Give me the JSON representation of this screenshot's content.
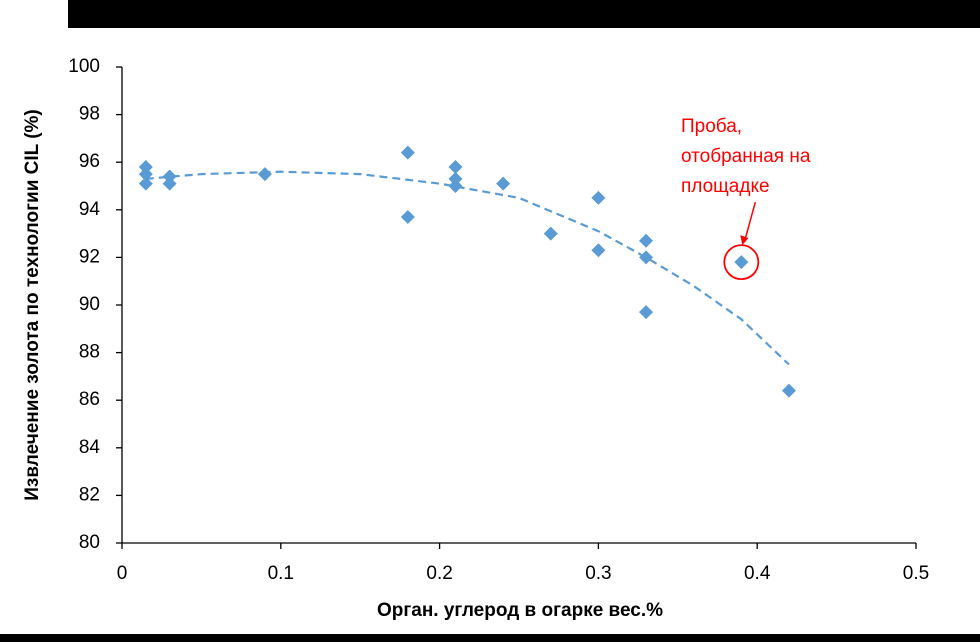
{
  "chart_data": {
    "type": "scatter",
    "x_label": "Орган. углерод в  огарке вес.%",
    "y_label": "Извлечение золота по технологии CIL (%)",
    "x": [
      0.015,
      0.015,
      0.015,
      0.03,
      0.03,
      0.09,
      0.18,
      0.18,
      0.21,
      0.21,
      0.21,
      0.24,
      0.27,
      0.3,
      0.3,
      0.33,
      0.33,
      0.33,
      0.39,
      0.42
    ],
    "values": [
      95.8,
      95.5,
      95.1,
      95.4,
      95.1,
      95.5,
      96.4,
      93.7,
      95.8,
      95.3,
      95.0,
      95.1,
      93.0,
      94.5,
      92.3,
      92.7,
      92.0,
      89.7,
      91.8,
      86.4
    ],
    "color": "#5b9bd5",
    "trendline": {
      "x": [
        0.015,
        0.05,
        0.1,
        0.15,
        0.2,
        0.25,
        0.3,
        0.33,
        0.36,
        0.39,
        0.42
      ],
      "values": [
        95.3,
        95.5,
        95.6,
        95.5,
        95.1,
        94.5,
        93.1,
        92.0,
        90.8,
        89.4,
        87.5
      ],
      "color": "#5b9bd5"
    },
    "annotation": {
      "lines": [
        "Проба,",
        "отобранная на",
        "площадке"
      ],
      "color": "#ff0000"
    },
    "xlim": [
      0,
      0.5
    ],
    "xticks": [
      0,
      0.1,
      0.2,
      0.3,
      0.4,
      0.5
    ],
    "ylim": [
      80,
      100
    ],
    "yticks": [
      80,
      82,
      84,
      86,
      88,
      90,
      92,
      94,
      96,
      98,
      100
    ],
    "grid": false
  }
}
